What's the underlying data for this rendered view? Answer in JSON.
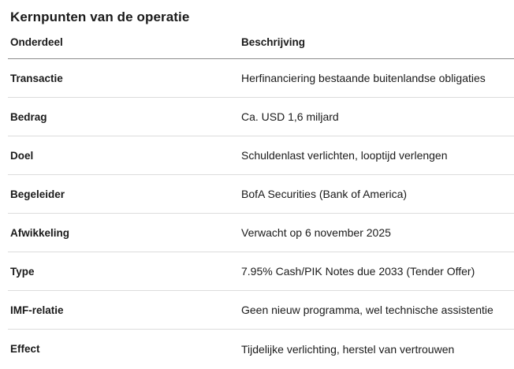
{
  "title": "Kernpunten van de operatie",
  "table": {
    "columns": [
      {
        "label": "Onderdeel"
      },
      {
        "label": "Beschrijving"
      }
    ],
    "rows": [
      {
        "onderdeel": "Transactie",
        "beschrijving": "Herfinanciering bestaande buitenlandse obligaties"
      },
      {
        "onderdeel": "Bedrag",
        "beschrijving": "Ca. USD 1,6 miljard"
      },
      {
        "onderdeel": "Doel",
        "beschrijving": "Schuldenlast verlichten, looptijd verlengen"
      },
      {
        "onderdeel": "Begeleider",
        "beschrijving": "BofA Securities (Bank of America)"
      },
      {
        "onderdeel": "Afwikkeling",
        "beschrijving": "Verwacht op 6 november 2025"
      },
      {
        "onderdeel": "Type",
        "beschrijving": "7.95% Cash/PIK Notes due 2033 (Tender Offer)"
      },
      {
        "onderdeel": "IMF-relatie",
        "beschrijving": "Geen nieuw programma, wel technische assistentie"
      },
      {
        "onderdeel": "Effect",
        "beschrijving": "Tijdelijke verlichting, herstel van vertrouwen"
      }
    ]
  },
  "colors": {
    "text": "#1a1a1a",
    "header_divider": "#8c8c8c",
    "row_divider": "#dcdcdc",
    "background": "#ffffff"
  }
}
